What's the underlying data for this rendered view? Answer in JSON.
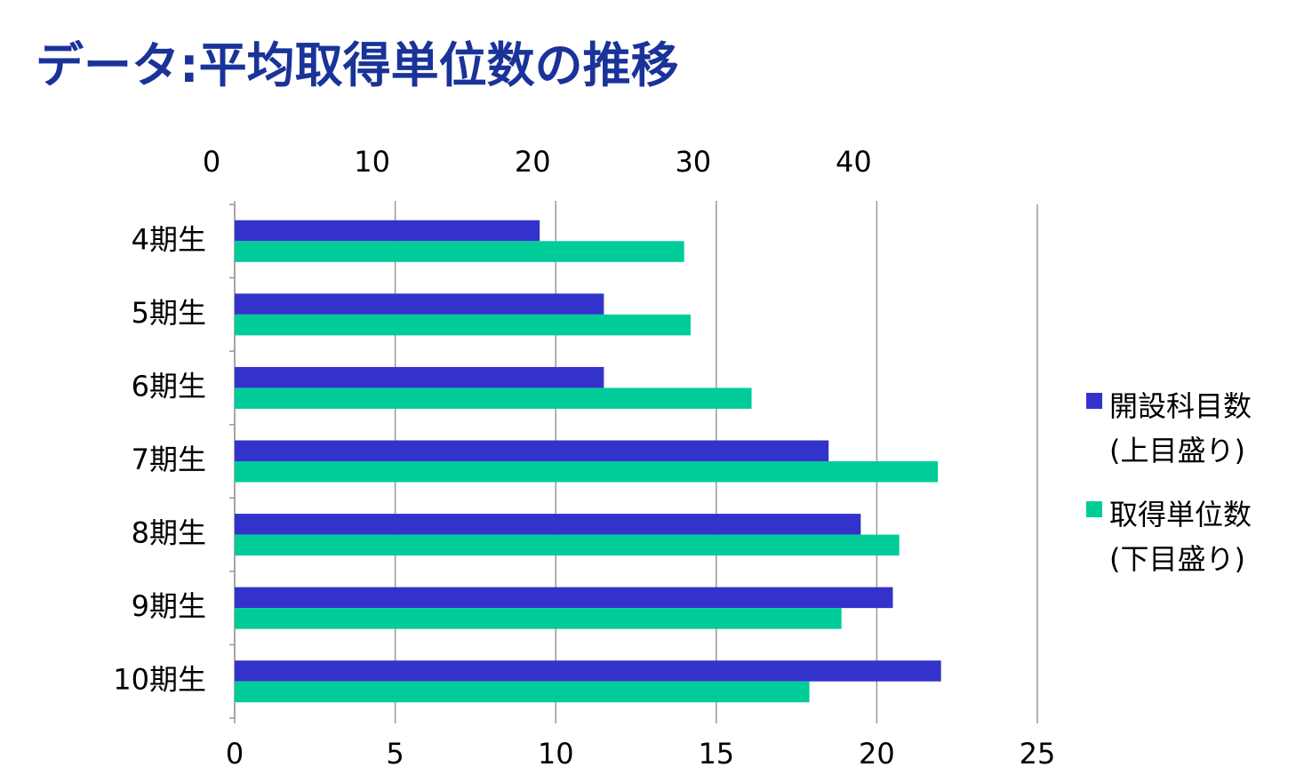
{
  "chart_data": {
    "type": "bar",
    "orientation": "horizontal",
    "title": "データ:平均取得単位数の推移",
    "categories": [
      "4期生",
      "5期生",
      "6期生",
      "7期生",
      "8期生",
      "9期生",
      "10期生"
    ],
    "series": [
      {
        "name": "開設科目数\n(上目盛り)",
        "color": "#3333cc",
        "axis": "x2",
        "values": [
          19,
          23,
          23,
          37,
          39,
          41,
          44
        ]
      },
      {
        "name": "取得単位数\n(下目盛り)",
        "color": "#00cc99",
        "values": [
          14,
          14.2,
          16.1,
          21.9,
          20.7,
          18.9,
          17.9
        ]
      }
    ],
    "xlim": [
      0,
      25
    ],
    "xticks": [
      0,
      5,
      10,
      15,
      20,
      25
    ],
    "x2lim": [
      0,
      50
    ],
    "x2ticks": [
      0,
      10,
      20,
      30,
      40
    ],
    "grid": true,
    "legend": "right"
  }
}
